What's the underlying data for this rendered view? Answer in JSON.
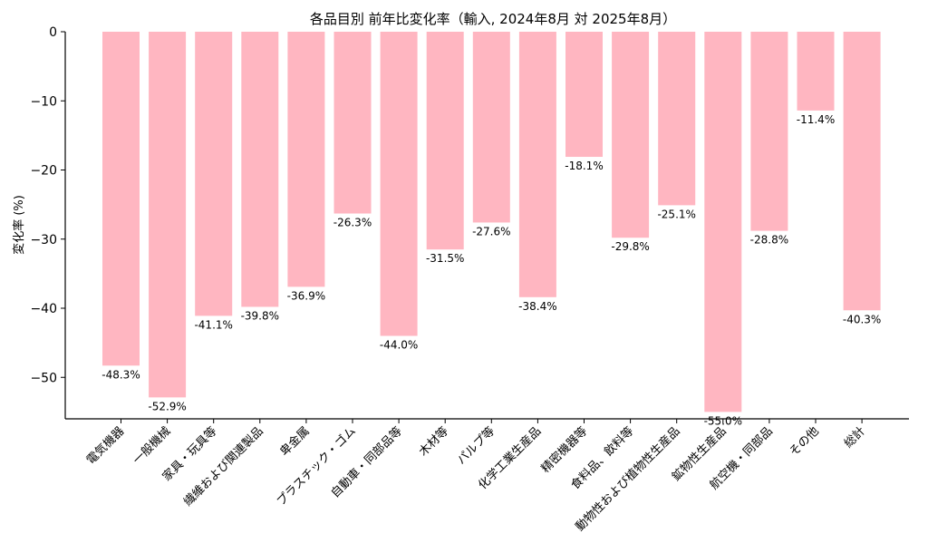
{
  "chart_data": {
    "type": "bar",
    "title": "各品目別 前年比変化率（輸入, 2024年8月 対 2025年8月）",
    "xlabel": "",
    "ylabel": "変化率 (%)",
    "ylim": [
      -56,
      0
    ],
    "yticks": [
      0,
      -10,
      -20,
      -30,
      -40,
      -50
    ],
    "ytick_labels": [
      "0",
      "−10",
      "−20",
      "−30",
      "−40",
      "−50"
    ],
    "bar_color": "#ffb6c1",
    "grid": false,
    "categories": [
      "電気機器",
      "一般機械",
      "家具・玩具等",
      "繊維および関連製品",
      "卑金属",
      "プラスチック・ゴム",
      "自動車・同部品等",
      "木材等",
      "パルプ等",
      "化学工業生産品",
      "精密機器等",
      "食料品、飲料等",
      "動物性および植物性生産品",
      "鉱物性生産品",
      "航空機・同部品",
      "その他",
      "総計"
    ],
    "values": [
      -48.3,
      -52.9,
      -41.1,
      -39.8,
      -36.9,
      -26.3,
      -44.0,
      -31.5,
      -27.6,
      -38.4,
      -18.1,
      -29.8,
      -25.1,
      -55.0,
      -28.8,
      -11.4,
      -40.3
    ],
    "value_labels": [
      "-48.3%",
      "-52.9%",
      "-41.1%",
      "-39.8%",
      "-36.9%",
      "-26.3%",
      "-44.0%",
      "-31.5%",
      "-27.6%",
      "-38.4%",
      "-18.1%",
      "-29.8%",
      "-25.1%",
      "-55.0%",
      "-28.8%",
      "-11.4%",
      "-40.3%"
    ]
  }
}
